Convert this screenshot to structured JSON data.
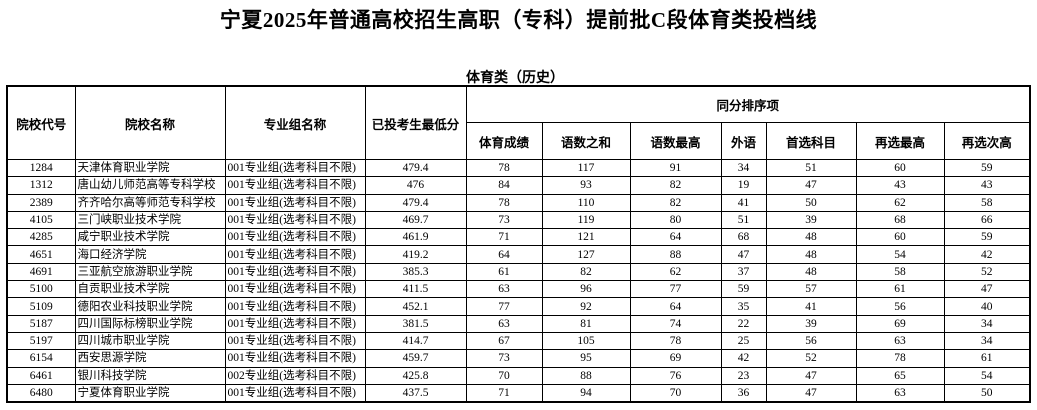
{
  "title": "宁夏2025年普通高校招生高职（专科）提前批C段体育类投档线",
  "subtitle": "体育类（历史）",
  "headers": {
    "code": "院校代号",
    "school": "院校名称",
    "group": "专业组名称",
    "min_score": "已投考生最低分",
    "tie_break": "同分排序项",
    "sub": [
      "体育成绩",
      "语数之和",
      "语数最高",
      "外语",
      "首选科目",
      "再选最高",
      "再选次高"
    ]
  },
  "rows": [
    [
      "1284",
      "天津体育职业学院",
      "001专业组(选考科目不限)",
      "479.4",
      "78",
      "117",
      "91",
      "34",
      "51",
      "60",
      "59"
    ],
    [
      "1312",
      "唐山幼儿师范高等专科学校",
      "001专业组(选考科目不限)",
      "476",
      "84",
      "93",
      "82",
      "19",
      "47",
      "43",
      "43"
    ],
    [
      "2389",
      "齐齐哈尔高等师范专科学校",
      "001专业组(选考科目不限)",
      "479.4",
      "78",
      "110",
      "82",
      "41",
      "50",
      "62",
      "58"
    ],
    [
      "4105",
      "三门峡职业技术学院",
      "001专业组(选考科目不限)",
      "469.7",
      "73",
      "119",
      "80",
      "51",
      "39",
      "68",
      "66"
    ],
    [
      "4285",
      "咸宁职业技术学院",
      "001专业组(选考科目不限)",
      "461.9",
      "71",
      "121",
      "64",
      "68",
      "48",
      "60",
      "59"
    ],
    [
      "4651",
      "海口经济学院",
      "001专业组(选考科目不限)",
      "419.2",
      "64",
      "127",
      "88",
      "47",
      "48",
      "54",
      "42"
    ],
    [
      "4691",
      "三亚航空旅游职业学院",
      "001专业组(选考科目不限)",
      "385.3",
      "61",
      "82",
      "62",
      "37",
      "48",
      "58",
      "52"
    ],
    [
      "5100",
      "自贡职业技术学院",
      "001专业组(选考科目不限)",
      "411.5",
      "63",
      "96",
      "77",
      "59",
      "57",
      "61",
      "47"
    ],
    [
      "5109",
      "德阳农业科技职业学院",
      "001专业组(选考科目不限)",
      "452.1",
      "77",
      "92",
      "64",
      "35",
      "41",
      "56",
      "40"
    ],
    [
      "5187",
      "四川国际标榜职业学院",
      "001专业组(选考科目不限)",
      "381.5",
      "63",
      "81",
      "74",
      "22",
      "39",
      "69",
      "34"
    ],
    [
      "5197",
      "四川城市职业学院",
      "001专业组(选考科目不限)",
      "414.7",
      "67",
      "105",
      "78",
      "25",
      "56",
      "63",
      "34"
    ],
    [
      "6154",
      "西安思源学院",
      "001专业组(选考科目不限)",
      "459.7",
      "73",
      "95",
      "69",
      "42",
      "52",
      "78",
      "61"
    ],
    [
      "6461",
      "银川科技学院",
      "002专业组(选考科目不限)",
      "425.8",
      "70",
      "88",
      "76",
      "23",
      "47",
      "65",
      "54"
    ],
    [
      "6480",
      "宁夏体育职业学院",
      "001专业组(选考科目不限)",
      "437.5",
      "71",
      "94",
      "70",
      "36",
      "47",
      "63",
      "50"
    ]
  ]
}
